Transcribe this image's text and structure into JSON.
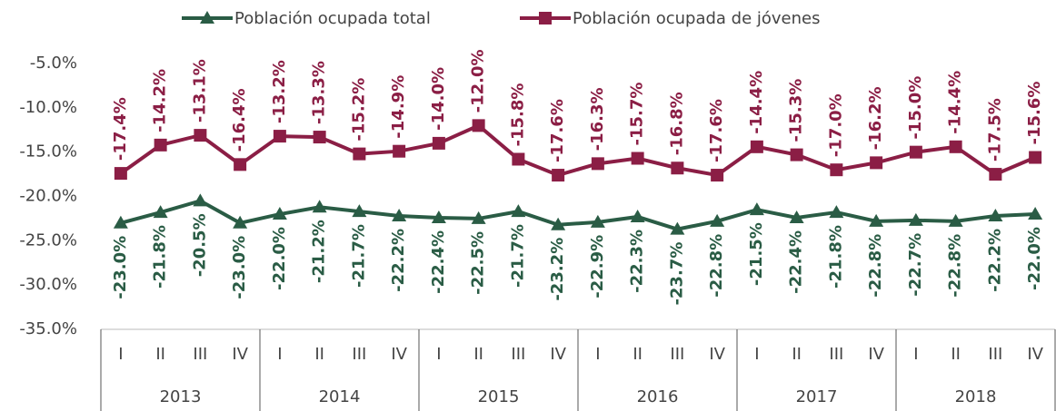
{
  "chart_data": {
    "type": "line",
    "categories": [
      "I",
      "II",
      "III",
      "IV",
      "I",
      "II",
      "III",
      "IV",
      "I",
      "II",
      "III",
      "IV",
      "I",
      "II",
      "III",
      "IV",
      "I",
      "II",
      "III",
      "IV",
      "I",
      "II",
      "III",
      "IV"
    ],
    "category_groups": [
      "2013",
      "2014",
      "2015",
      "2016",
      "2017",
      "2018"
    ],
    "series": [
      {
        "name": "Población ocupada total",
        "color": "#2a5c45",
        "marker": "triangle",
        "values": [
          -23.0,
          -21.8,
          -20.5,
          -23.0,
          -22.0,
          -21.2,
          -21.7,
          -22.2,
          -22.4,
          -22.5,
          -21.7,
          -23.2,
          -22.9,
          -22.3,
          -23.7,
          -22.8,
          -21.5,
          -22.4,
          -21.8,
          -22.8,
          -22.7,
          -22.8,
          -22.2,
          -22.0
        ],
        "value_labels": [
          "-23.0%",
          "-21.8%",
          "-20.5%",
          "-23.0%",
          "-22.0%",
          "-21.2%",
          "-21.7%",
          "-22.2%",
          "-22.4%",
          "-22.5%",
          "-21.7%",
          "-23.2%",
          "-22.9%",
          "-22.3%",
          "-23.7%",
          "-22.8%",
          "-21.5%",
          "-22.4%",
          "-21.8%",
          "-22.8%",
          "-22.7%",
          "-22.8%",
          "-22.2%",
          "-22.0%"
        ]
      },
      {
        "name": "Población ocupada de jóvenes",
        "color": "#8b1e45",
        "marker": "square",
        "values": [
          -17.4,
          -14.2,
          -13.1,
          -16.4,
          -13.2,
          -13.3,
          -15.2,
          -14.9,
          -14.0,
          -12.0,
          -15.8,
          -17.6,
          -16.3,
          -15.7,
          -16.8,
          -17.6,
          -14.4,
          -15.3,
          -17.0,
          -16.2,
          -15.0,
          -14.4,
          -17.5,
          -15.6
        ],
        "value_labels": [
          "-17.4%",
          "-14.2%",
          "-13.1%",
          "-16.4%",
          "-13.2%",
          "-13.3%",
          "-15.2%",
          "-14.9%",
          "-14.0%",
          "-12.0%",
          "-15.8%",
          "-17.6%",
          "-16.3%",
          "-15.7%",
          "-16.8%",
          "-17.6%",
          "-14.4%",
          "-15.3%",
          "-17.0%",
          "-16.2%",
          "-15.0%",
          "-14.4%",
          "-17.5%",
          "-15.6%"
        ]
      }
    ],
    "ylim": [
      -35,
      -5
    ],
    "yticks": [
      {
        "value": -5,
        "label": "-5.0%"
      },
      {
        "value": -10,
        "label": "-10.0%"
      },
      {
        "value": -15,
        "label": "-15.0%"
      },
      {
        "value": -20,
        "label": "-20.0%"
      },
      {
        "value": -25,
        "label": "-25.0%"
      },
      {
        "value": -30,
        "label": "-30.0%"
      },
      {
        "value": -35,
        "label": "-35.0%"
      }
    ],
    "grid": false,
    "legend": "top"
  }
}
